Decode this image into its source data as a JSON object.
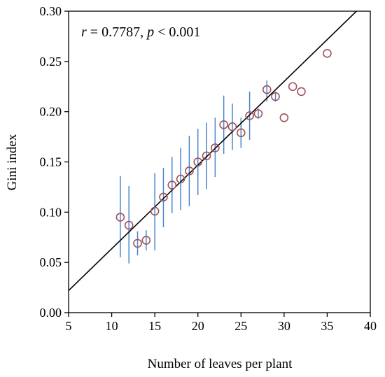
{
  "chart_data": {
    "type": "scatter",
    "xlabel": "Number of leaves per plant",
    "ylabel": "Gini index",
    "xlim": [
      5,
      40
    ],
    "ylim": [
      0,
      0.3
    ],
    "x_ticks": [
      "5",
      "10",
      "15",
      "20",
      "25",
      "30",
      "35",
      "40"
    ],
    "y_ticks": [
      "0.00",
      "0.05",
      "0.10",
      "0.15",
      "0.20",
      "0.25",
      "0.30"
    ],
    "annotation": {
      "r_symbol": "r",
      "r_text": " = 0.7787, ",
      "p_symbol": "p",
      "p_text": " < 0.001"
    },
    "grid": false,
    "legend": "none",
    "colors": {
      "marker": "#a0525a",
      "error_bar": "#4a86c8",
      "fit_line": "#000000"
    },
    "points": [
      {
        "x": 11,
        "y": 0.095,
        "err_low": 0.055,
        "err_high": 0.136
      },
      {
        "x": 12,
        "y": 0.087,
        "err_low": 0.049,
        "err_high": 0.126
      },
      {
        "x": 13,
        "y": 0.069,
        "err_low": 0.057,
        "err_high": 0.081
      },
      {
        "x": 14,
        "y": 0.072,
        "err_low": 0.062,
        "err_high": 0.082
      },
      {
        "x": 15,
        "y": 0.101,
        "err_low": 0.062,
        "err_high": 0.139
      },
      {
        "x": 16,
        "y": 0.115,
        "err_low": 0.085,
        "err_high": 0.144
      },
      {
        "x": 17,
        "y": 0.127,
        "err_low": 0.099,
        "err_high": 0.155
      },
      {
        "x": 18,
        "y": 0.133,
        "err_low": 0.102,
        "err_high": 0.164
      },
      {
        "x": 19,
        "y": 0.141,
        "err_low": 0.106,
        "err_high": 0.176
      },
      {
        "x": 20,
        "y": 0.15,
        "err_low": 0.117,
        "err_high": 0.183
      },
      {
        "x": 21,
        "y": 0.156,
        "err_low": 0.123,
        "err_high": 0.189
      },
      {
        "x": 22,
        "y": 0.164,
        "err_low": 0.135,
        "err_high": 0.194
      },
      {
        "x": 23,
        "y": 0.187,
        "err_low": 0.158,
        "err_high": 0.216
      },
      {
        "x": 24,
        "y": 0.185,
        "err_low": 0.162,
        "err_high": 0.208
      },
      {
        "x": 25,
        "y": 0.179,
        "err_low": 0.164,
        "err_high": 0.194
      },
      {
        "x": 26,
        "y": 0.196,
        "err_low": 0.172,
        "err_high": 0.22
      },
      {
        "x": 27,
        "y": 0.198,
        "err_low": 0.193,
        "err_high": 0.203
      },
      {
        "x": 28,
        "y": 0.222,
        "err_low": 0.21,
        "err_high": 0.231
      },
      {
        "x": 29,
        "y": 0.215,
        "err_low": 0.21,
        "err_high": 0.22
      },
      {
        "x": 30,
        "y": 0.194,
        "err_low": 0.194,
        "err_high": 0.194
      },
      {
        "x": 31,
        "y": 0.225,
        "err_low": 0.225,
        "err_high": 0.225
      },
      {
        "x": 32,
        "y": 0.22,
        "err_low": 0.22,
        "err_high": 0.22
      },
      {
        "x": 35,
        "y": 0.258,
        "err_low": 0.258,
        "err_high": 0.258
      }
    ],
    "fit_line": {
      "x": [
        5,
        38.4
      ],
      "y": [
        0.022,
        0.3
      ]
    }
  }
}
